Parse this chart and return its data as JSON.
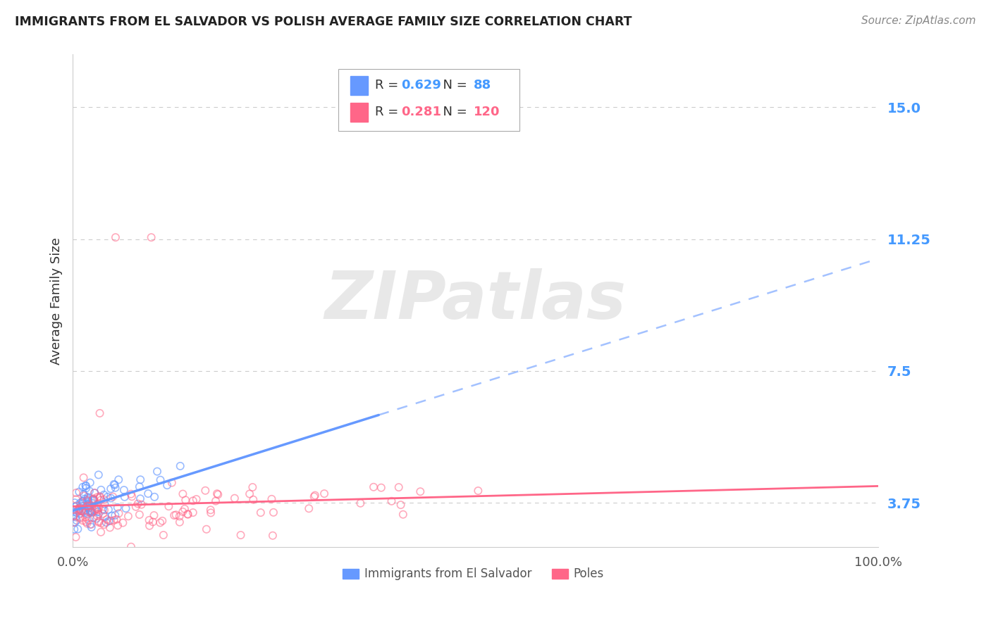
{
  "title": "IMMIGRANTS FROM EL SALVADOR VS POLISH AVERAGE FAMILY SIZE CORRELATION CHART",
  "source": "Source: ZipAtlas.com",
  "ylabel": "Average Family Size",
  "yticks": [
    3.75,
    7.5,
    11.25,
    15.0
  ],
  "ytick_color": "#4499ff",
  "legend_blue_R": "0.629",
  "legend_blue_N": "88",
  "legend_pink_R": "0.281",
  "legend_pink_N": "120",
  "legend_label_blue": "Immigrants from El Salvador",
  "legend_label_pink": "Poles",
  "blue_color": "#6699ff",
  "pink_color": "#ff6688",
  "watermark_text": "ZIPatlas",
  "xlim": [
    0.0,
    1.0
  ],
  "ylim": [
    2.5,
    16.5
  ],
  "background_color": "#ffffff",
  "grid_color": "#cccccc",
  "blue_scatter_seed": 7,
  "pink_scatter_seed": 13,
  "n_blue": 88,
  "n_pink": 120
}
